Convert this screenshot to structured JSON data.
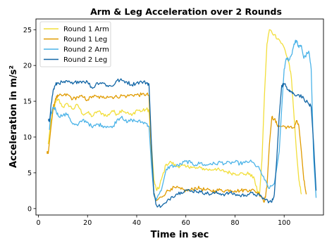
{
  "chart_data": {
    "type": "line",
    "title": "Arm & Leg Acceleration over 2 Rounds",
    "xlabel": "Time in sec",
    "ylabel": "Acceleration in m/s²",
    "xlim": [
      -1,
      116
    ],
    "ylim": [
      -0.9,
      26.5
    ],
    "xticks": [
      0,
      20,
      40,
      60,
      80,
      100
    ],
    "yticks": [
      0,
      5,
      10,
      15,
      20,
      25
    ],
    "grid": false,
    "legend_position": "top-left",
    "series": [
      {
        "name": "Round 1 Arm",
        "color": "#f2de3a",
        "points": [
          [
            4,
            9
          ],
          [
            5,
            12
          ],
          [
            6,
            13.8
          ],
          [
            7,
            14.8
          ],
          [
            8,
            15.3
          ],
          [
            10,
            14.2
          ],
          [
            12,
            14.6
          ],
          [
            14,
            13.9
          ],
          [
            16,
            14.5
          ],
          [
            18,
            13.2
          ],
          [
            20,
            13.4
          ],
          [
            22,
            12.9
          ],
          [
            24,
            13.6
          ],
          [
            26,
            13.3
          ],
          [
            28,
            12.9
          ],
          [
            30,
            13.7
          ],
          [
            32,
            13.2
          ],
          [
            34,
            13.8
          ],
          [
            36,
            13.4
          ],
          [
            38,
            13.0
          ],
          [
            40,
            13.8
          ],
          [
            42,
            13.6
          ],
          [
            44,
            13.9
          ],
          [
            45,
            13.7
          ],
          [
            46,
            9
          ],
          [
            47,
            4
          ],
          [
            48,
            2.6
          ],
          [
            49,
            2.8
          ],
          [
            50,
            4
          ],
          [
            52,
            6.2
          ],
          [
            54,
            6.5
          ],
          [
            56,
            5.9
          ],
          [
            58,
            6.0
          ],
          [
            60,
            5.8
          ],
          [
            62,
            5.9
          ],
          [
            64,
            5.6
          ],
          [
            66,
            5.7
          ],
          [
            68,
            5.5
          ],
          [
            70,
            5.4
          ],
          [
            72,
            5.6
          ],
          [
            74,
            5.3
          ],
          [
            76,
            5.2
          ],
          [
            78,
            5.0
          ],
          [
            80,
            4.9
          ],
          [
            82,
            4.9
          ],
          [
            84,
            4.8
          ],
          [
            86,
            4.9
          ],
          [
            88,
            4.0
          ],
          [
            89,
            2.5
          ],
          [
            90,
            2.0
          ],
          [
            91,
            7
          ],
          [
            92,
            16
          ],
          [
            93,
            23
          ],
          [
            94,
            25
          ],
          [
            96,
            24.3
          ],
          [
            98,
            23.6
          ],
          [
            100,
            22.5
          ],
          [
            102,
            20.3
          ],
          [
            103,
            18
          ],
          [
            104,
            13
          ],
          [
            105,
            8
          ],
          [
            106,
            4
          ],
          [
            107,
            2
          ]
        ]
      },
      {
        "name": "Round 1 Leg",
        "color": "#e09b00",
        "points": [
          [
            3.5,
            8
          ],
          [
            4,
            7.7
          ],
          [
            5,
            11
          ],
          [
            6,
            14
          ],
          [
            7,
            15.4
          ],
          [
            8,
            15.7
          ],
          [
            10,
            15.8
          ],
          [
            12,
            15.9
          ],
          [
            14,
            15.3
          ],
          [
            16,
            15.6
          ],
          [
            18,
            15.6
          ],
          [
            20,
            15.2
          ],
          [
            22,
            15.7
          ],
          [
            24,
            15.6
          ],
          [
            26,
            15.5
          ],
          [
            28,
            15.7
          ],
          [
            30,
            15.6
          ],
          [
            32,
            15.6
          ],
          [
            34,
            15.8
          ],
          [
            36,
            15.7
          ],
          [
            38,
            15.9
          ],
          [
            40,
            15.9
          ],
          [
            42,
            15.9
          ],
          [
            44,
            16.0
          ],
          [
            45,
            15.8
          ],
          [
            46,
            7
          ],
          [
            47,
            2
          ],
          [
            48,
            1.1
          ],
          [
            50,
            1.6
          ],
          [
            52,
            2.3
          ],
          [
            54,
            2.8
          ],
          [
            56,
            2.9
          ],
          [
            58,
            2.7
          ],
          [
            60,
            2.5
          ],
          [
            62,
            2.6
          ],
          [
            64,
            2.9
          ],
          [
            66,
            2.8
          ],
          [
            68,
            2.6
          ],
          [
            70,
            2.5
          ],
          [
            72,
            2.5
          ],
          [
            74,
            2.6
          ],
          [
            76,
            2.5
          ],
          [
            78,
            2.6
          ],
          [
            80,
            2.5
          ],
          [
            82,
            2.5
          ],
          [
            84,
            2.6
          ],
          [
            86,
            2.6
          ],
          [
            88,
            2.5
          ],
          [
            90,
            2.0
          ],
          [
            91,
            1.6
          ],
          [
            92,
            1.0
          ],
          [
            93,
            3
          ],
          [
            94,
            9
          ],
          [
            95,
            12.8
          ],
          [
            96,
            12.5
          ],
          [
            97,
            11.8
          ],
          [
            98,
            11.5
          ],
          [
            100,
            11.5
          ],
          [
            102,
            11.3
          ],
          [
            104,
            11.3
          ],
          [
            105,
            12.3
          ],
          [
            106,
            11.5
          ],
          [
            107,
            8
          ],
          [
            108,
            4
          ],
          [
            109,
            2
          ]
        ]
      },
      {
        "name": "Round 2 Arm",
        "color": "#4bb3e8",
        "points": [
          [
            4.5,
            11
          ],
          [
            5,
            13
          ],
          [
            6,
            14.2
          ],
          [
            7,
            13.9
          ],
          [
            8,
            13
          ],
          [
            10,
            13
          ],
          [
            12,
            13.2
          ],
          [
            14,
            11.8
          ],
          [
            16,
            11.6
          ],
          [
            18,
            12.4
          ],
          [
            20,
            12.1
          ],
          [
            22,
            11.3
          ],
          [
            24,
            11.8
          ],
          [
            26,
            11.6
          ],
          [
            28,
            11.5
          ],
          [
            30,
            11.3
          ],
          [
            32,
            12.4
          ],
          [
            34,
            12.9
          ],
          [
            36,
            12.0
          ],
          [
            38,
            12.4
          ],
          [
            40,
            12.2
          ],
          [
            42,
            12.1
          ],
          [
            44,
            11.9
          ],
          [
            45,
            11.5
          ],
          [
            46,
            6
          ],
          [
            47,
            2
          ],
          [
            48,
            1.2
          ],
          [
            50,
            2.5
          ],
          [
            52,
            5.5
          ],
          [
            54,
            6.0
          ],
          [
            56,
            5.9
          ],
          [
            58,
            6.2
          ],
          [
            60,
            6.6
          ],
          [
            62,
            6.4
          ],
          [
            64,
            6.1
          ],
          [
            66,
            6.4
          ],
          [
            68,
            6.0
          ],
          [
            70,
            6.3
          ],
          [
            72,
            6.2
          ],
          [
            74,
            6.5
          ],
          [
            76,
            6.3
          ],
          [
            78,
            6.4
          ],
          [
            80,
            6.5
          ],
          [
            82,
            6.3
          ],
          [
            84,
            6.4
          ],
          [
            86,
            6.6
          ],
          [
            88,
            6.2
          ],
          [
            90,
            5.5
          ],
          [
            92,
            4.0
          ],
          [
            94,
            2.8
          ],
          [
            96,
            3.5
          ],
          [
            98,
            8
          ],
          [
            99,
            14
          ],
          [
            100,
            19.5
          ],
          [
            101,
            21
          ],
          [
            102,
            20.8
          ],
          [
            103,
            21.5
          ],
          [
            104,
            23
          ],
          [
            105,
            23.5
          ],
          [
            106,
            22.5
          ],
          [
            107,
            22.8
          ],
          [
            108,
            21
          ],
          [
            110,
            22
          ],
          [
            111,
            19.5
          ],
          [
            112,
            7
          ],
          [
            113,
            1.5
          ]
        ]
      },
      {
        "name": "Round 2 Leg",
        "color": "#1266a6",
        "points": [
          [
            4,
            12.3
          ],
          [
            4.5,
            12.2
          ],
          [
            5,
            14
          ],
          [
            6,
            16.5
          ],
          [
            7,
            17.3
          ],
          [
            8,
            17.6
          ],
          [
            10,
            17.6
          ],
          [
            12,
            17.7
          ],
          [
            14,
            17.4
          ],
          [
            16,
            17.8
          ],
          [
            18,
            17.8
          ],
          [
            20,
            17.7
          ],
          [
            22,
            16.8
          ],
          [
            24,
            17.6
          ],
          [
            26,
            17.6
          ],
          [
            28,
            17.2
          ],
          [
            30,
            17.1
          ],
          [
            32,
            17.9
          ],
          [
            34,
            17.9
          ],
          [
            36,
            17.7
          ],
          [
            38,
            17.3
          ],
          [
            40,
            17.6
          ],
          [
            42,
            17.7
          ],
          [
            44,
            17.6
          ],
          [
            45,
            17.4
          ],
          [
            46,
            9
          ],
          [
            47,
            2
          ],
          [
            48,
            0.5
          ],
          [
            50,
            0.3
          ],
          [
            52,
            0.8
          ],
          [
            54,
            1.6
          ],
          [
            56,
            2.0
          ],
          [
            58,
            2.3
          ],
          [
            60,
            2.6
          ],
          [
            62,
            2.4
          ],
          [
            64,
            2.5
          ],
          [
            66,
            2.3
          ],
          [
            68,
            2.2
          ],
          [
            70,
            2.0
          ],
          [
            72,
            2.2
          ],
          [
            74,
            2.1
          ],
          [
            76,
            2.0
          ],
          [
            78,
            2.2
          ],
          [
            80,
            2.0
          ],
          [
            82,
            1.8
          ],
          [
            84,
            1.9
          ],
          [
            86,
            2.1
          ],
          [
            88,
            2.0
          ],
          [
            90,
            1.8
          ],
          [
            92,
            1.3
          ],
          [
            94,
            1.0
          ],
          [
            95,
            0.9
          ],
          [
            96,
            2
          ],
          [
            97,
            7
          ],
          [
            98,
            13
          ],
          [
            99,
            17.2
          ],
          [
            100,
            17.4
          ],
          [
            101,
            17
          ],
          [
            102,
            16.6
          ],
          [
            103,
            16.3
          ],
          [
            104,
            16.0
          ],
          [
            106,
            15.9
          ],
          [
            108,
            15.4
          ],
          [
            110,
            14.6
          ],
          [
            111,
            14.2
          ],
          [
            112,
            9
          ],
          [
            113,
            2.5
          ]
        ]
      }
    ]
  }
}
